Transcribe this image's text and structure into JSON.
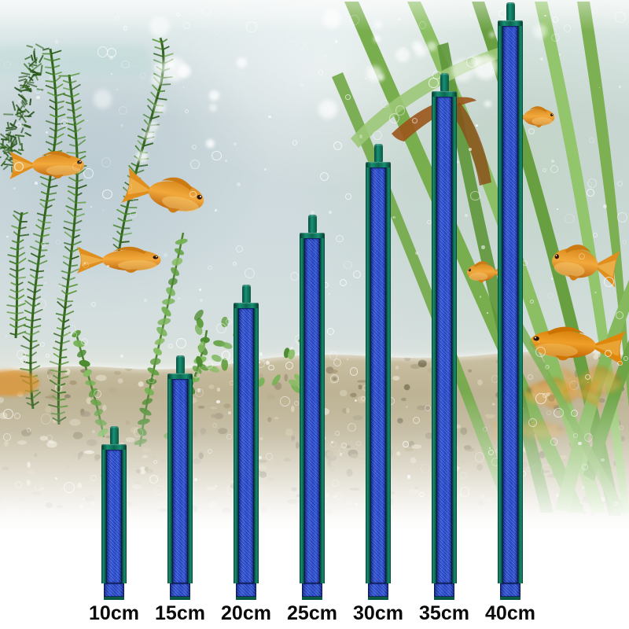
{
  "page": {
    "kind": "product size comparison photo",
    "description": "Seven blue aquarium air-stone bars of increasing length standing upright in a fish tank with goldfish, green water plants, rising bubbles and a gravel bed; a size label sits under each bar"
  },
  "products": {
    "unit": "cm",
    "sizes": [
      {
        "cm": 10,
        "label": "10cm"
      },
      {
        "cm": 15,
        "label": "15cm"
      },
      {
        "cm": 20,
        "label": "20cm"
      },
      {
        "cm": 25,
        "label": "25cm"
      },
      {
        "cm": 30,
        "label": "30cm"
      },
      {
        "cm": 35,
        "label": "35cm"
      },
      {
        "cm": 40,
        "label": "40cm"
      }
    ],
    "colors": {
      "stone_blue": "#2b51dd",
      "frame_green": "#0e7a60",
      "frame_green_dark": "#053b2d",
      "nub_green": "#0d654f",
      "label_text": "#0a0a0a"
    }
  },
  "scene": {
    "colors": {
      "water_top": "#e9efee",
      "water_mid": "#ccdadd",
      "gravel_sand": "#b7ac8c",
      "plant_green": "#6ca344",
      "goldfish_orange": "#e89427",
      "fade_white": "#ffffff"
    }
  }
}
